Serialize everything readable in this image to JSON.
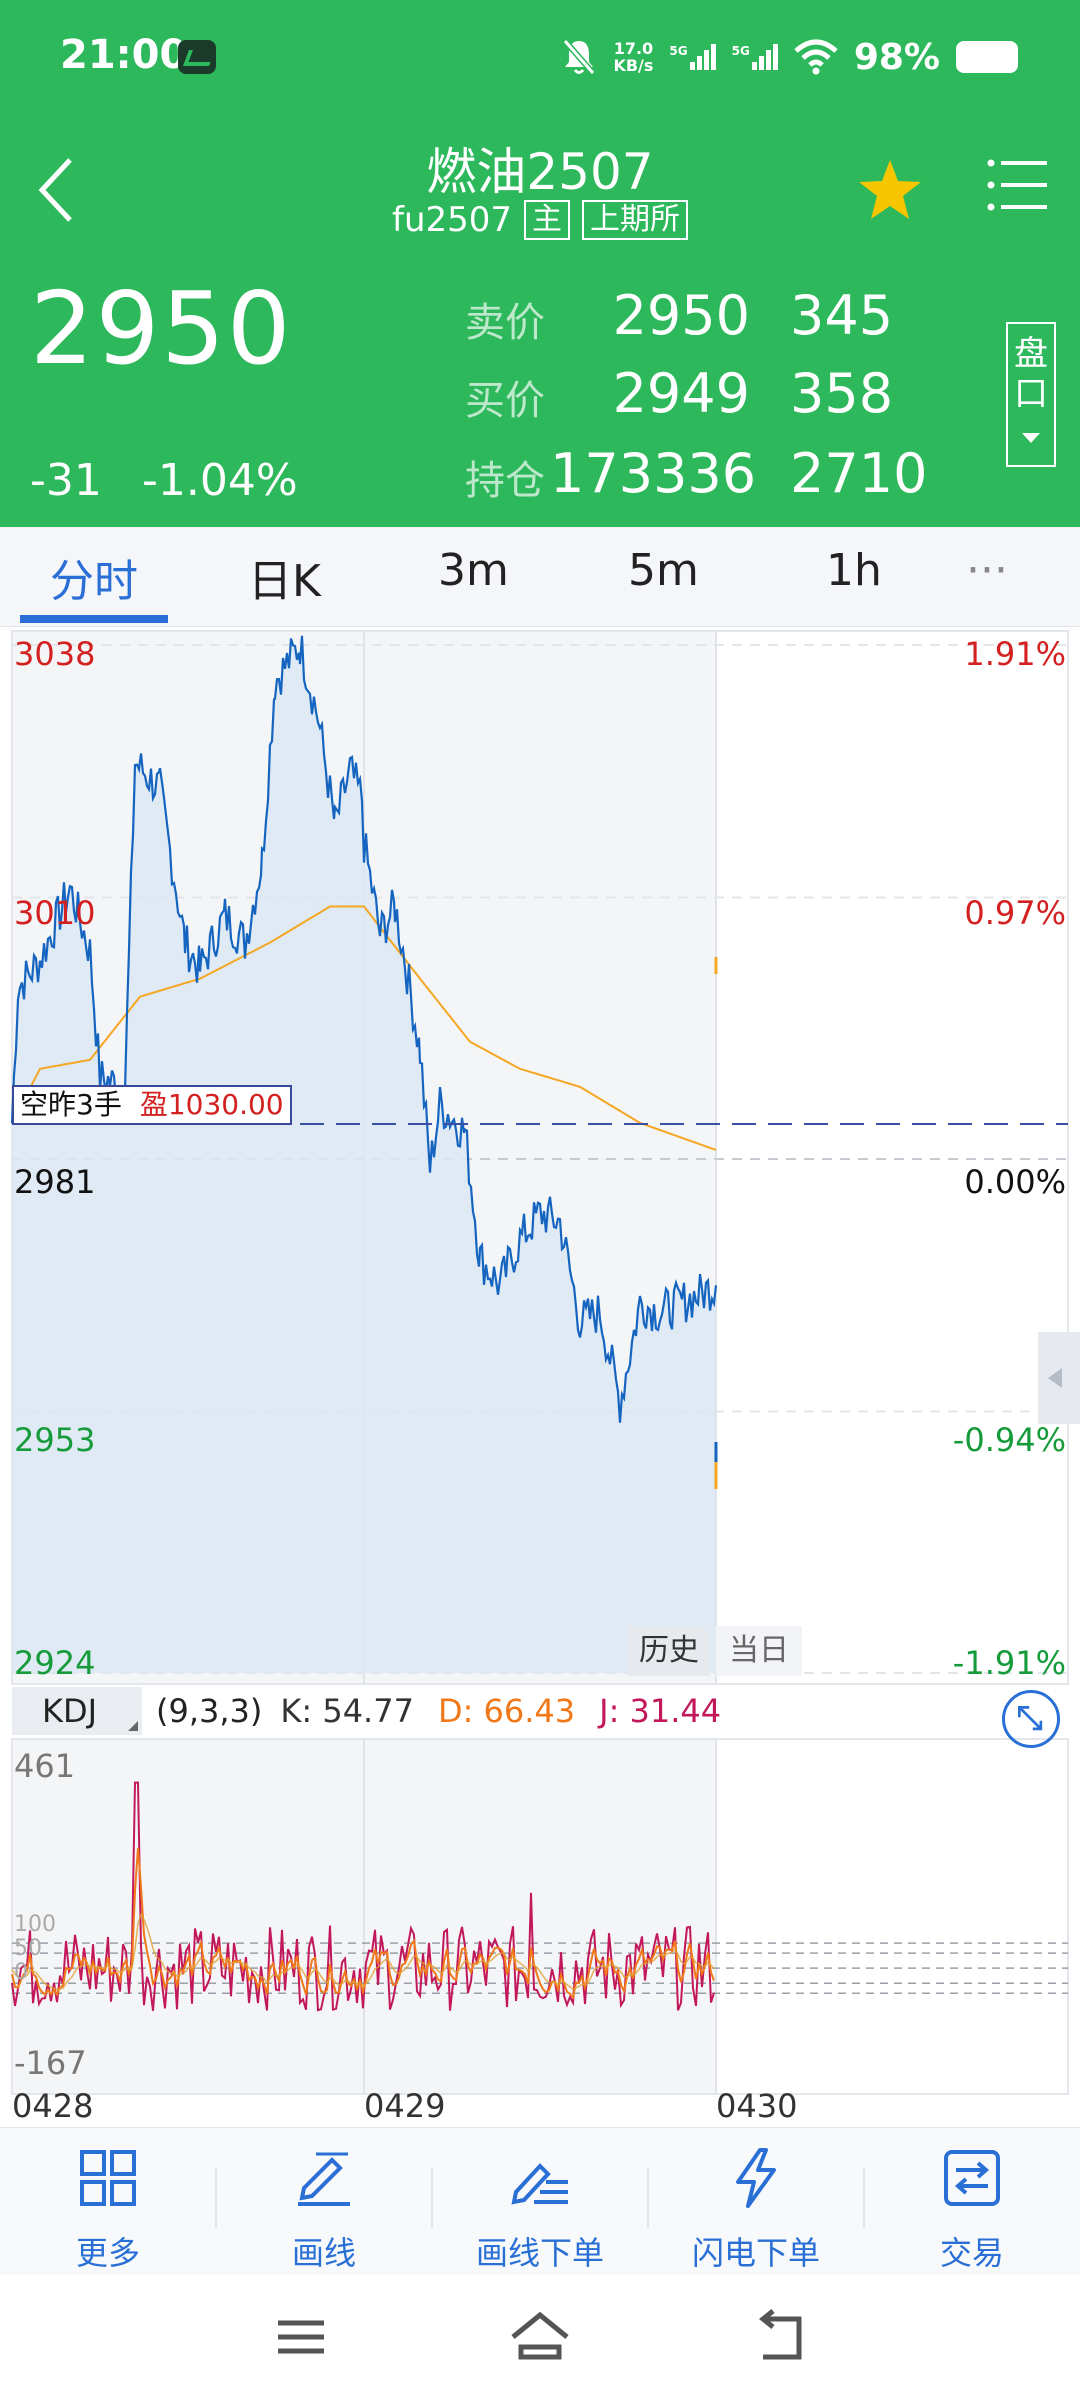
{
  "status_bar": {
    "time": "21:00",
    "net_speed": "17.0",
    "net_unit": "KB/s",
    "sig1": "5G",
    "sig2": "5G",
    "battery": "98%"
  },
  "header": {
    "title": "燃油2507",
    "code": "fu2507",
    "tag_main": "主",
    "exchange": "上期所",
    "last_price": "2950",
    "change": "-31",
    "change_pct": "-1.04%",
    "ask_label": "卖价",
    "ask_price": "2950",
    "ask_vol": "345",
    "bid_label": "买价",
    "bid_price": "2949",
    "bid_vol": "358",
    "oi_label": "持仓",
    "oi_value": "173336",
    "oi_change": "2710",
    "pankou_label_1": "盘",
    "pankou_label_2": "口"
  },
  "tabs": [
    "分时",
    "日K",
    "3m",
    "5m",
    "1h",
    "···"
  ],
  "chart": {
    "price_labels": [
      "3038",
      "3010",
      "2981",
      "2953",
      "2924"
    ],
    "pct_labels": [
      "1.91%",
      "0.97%",
      "0.00%",
      "-0.94%",
      "-1.91%"
    ],
    "position": "空昨3手",
    "profit": "盈1030.00",
    "history_btn": "历史",
    "today_btn": "当日",
    "kdj_tag": "KDJ",
    "kdj_params": "(9,3,3)",
    "kdj_k": "K: 54.77",
    "kdj_d": "D: 66.43",
    "kdj_j": "J: 31.44",
    "kdj_max": "461",
    "kdj_min": "-167",
    "kdj_ticks": [
      "100",
      "80",
      "50",
      "20",
      "0"
    ],
    "dates": [
      "0428",
      "0429",
      "0430"
    ],
    "colors": {
      "price": "#1565c0",
      "avg": "#f5a623",
      "up": "#d32020",
      "down": "#169b3b",
      "k": "#f07818",
      "j": "#c2185b"
    }
  },
  "chart_data": {
    "type": "line",
    "x": [
      "0428",
      "0429",
      "0430"
    ],
    "series": [],
    "ylim": [
      2924,
      3038
    ],
    "reference": 2981,
    "position_line": 2988
  },
  "toolbar": {
    "items": [
      "更多",
      "画线",
      "画线下单",
      "闪电下单",
      "交易"
    ]
  }
}
